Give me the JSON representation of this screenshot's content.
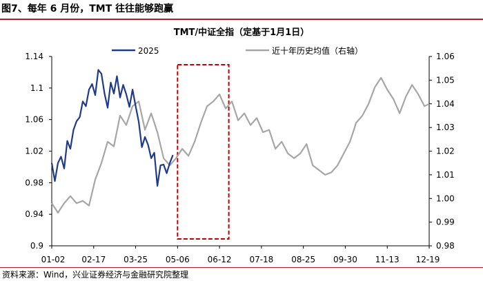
{
  "figure_title": "图7、每年 6 月份，TMT 往往能够跑赢",
  "source_note": "资料来源：Wind，兴业证券经济与金融研究院整理",
  "colors": {
    "accent_rule": "#b01a1a",
    "series_2025": "#1f3a8c",
    "series_avg": "#a6a6a6",
    "highlight_box": "#c00000"
  },
  "chart_data": {
    "type": "line",
    "title": "TMT/中证全指（定基于1月1日）",
    "x_ticks": [
      "01-02",
      "02-17",
      "03-25",
      "05-06",
      "06-12",
      "07-18",
      "08-25",
      "09-30",
      "11-13",
      "12-19"
    ],
    "x_range": [
      0,
      243
    ],
    "y_left": {
      "ticks": [
        "0.9",
        "0.94",
        "0.98",
        "1.02",
        "1.06",
        "1.1",
        "1.14"
      ],
      "range": [
        0.9,
        1.14
      ]
    },
    "y_right": {
      "ticks": [
        "0.98",
        "0.99",
        "1.00",
        "1.01",
        "1.02",
        "1.03",
        "1.04",
        "1.05",
        "1.06"
      ],
      "range": [
        0.98,
        1.06
      ]
    },
    "grid": false,
    "legend": "top",
    "highlight": {
      "label": "",
      "x_range": [
        81,
        114
      ]
    },
    "series": [
      {
        "name": "2025",
        "axis": "left",
        "x": [
          0,
          2,
          4,
          6,
          8,
          10,
          12,
          14,
          16,
          18,
          20,
          22,
          24,
          26,
          28,
          30,
          32,
          34,
          36,
          38,
          40,
          42,
          44,
          46,
          48,
          50,
          52,
          54,
          56,
          58,
          60,
          62,
          64,
          66,
          68,
          70,
          72,
          74,
          76,
          78
        ],
        "values": [
          1.005,
          0.982,
          1.005,
          1.013,
          0.998,
          1.033,
          1.023,
          1.047,
          1.058,
          1.063,
          1.083,
          1.077,
          1.098,
          1.105,
          1.091,
          1.123,
          1.118,
          1.093,
          1.075,
          1.107,
          1.093,
          1.115,
          1.088,
          1.104,
          1.092,
          1.076,
          1.098,
          1.077,
          1.057,
          1.025,
          1.038,
          1.028,
          1.011,
          1.018,
          0.976,
          1.002,
          1.003,
          0.992,
          1.005,
          1.015
        ]
      },
      {
        "name": "近十年历史均值（右轴）",
        "axis": "right",
        "x": [
          0,
          4,
          8,
          12,
          16,
          20,
          24,
          28,
          32,
          36,
          40,
          44,
          48,
          52,
          56,
          60,
          64,
          68,
          72,
          76,
          80,
          84,
          88,
          92,
          96,
          100,
          104,
          108,
          112,
          116,
          120,
          124,
          128,
          132,
          136,
          140,
          144,
          148,
          152,
          156,
          160,
          164,
          168,
          172,
          176,
          180,
          184,
          188,
          192,
          196,
          200,
          204,
          208,
          212,
          216,
          220,
          224,
          228,
          232,
          236,
          240,
          243
        ],
        "values": [
          0.998,
          0.994,
          0.998,
          1.001,
          0.998,
          0.999,
          0.997,
          1.008,
          1.015,
          1.024,
          1.022,
          1.035,
          1.031,
          1.039,
          1.041,
          1.029,
          1.036,
          1.028,
          1.017,
          1.014,
          1.017,
          1.021,
          1.018,
          1.024,
          1.032,
          1.039,
          1.041,
          1.044,
          1.038,
          1.041,
          1.033,
          1.036,
          1.031,
          1.034,
          1.028,
          1.029,
          1.021,
          1.024,
          1.019,
          1.017,
          1.019,
          1.023,
          1.014,
          1.012,
          1.01,
          1.011,
          1.014,
          1.019,
          1.024,
          1.032,
          1.035,
          1.04,
          1.047,
          1.051,
          1.046,
          1.042,
          1.036,
          1.043,
          1.048,
          1.044,
          1.039,
          1.04
        ]
      }
    ]
  }
}
